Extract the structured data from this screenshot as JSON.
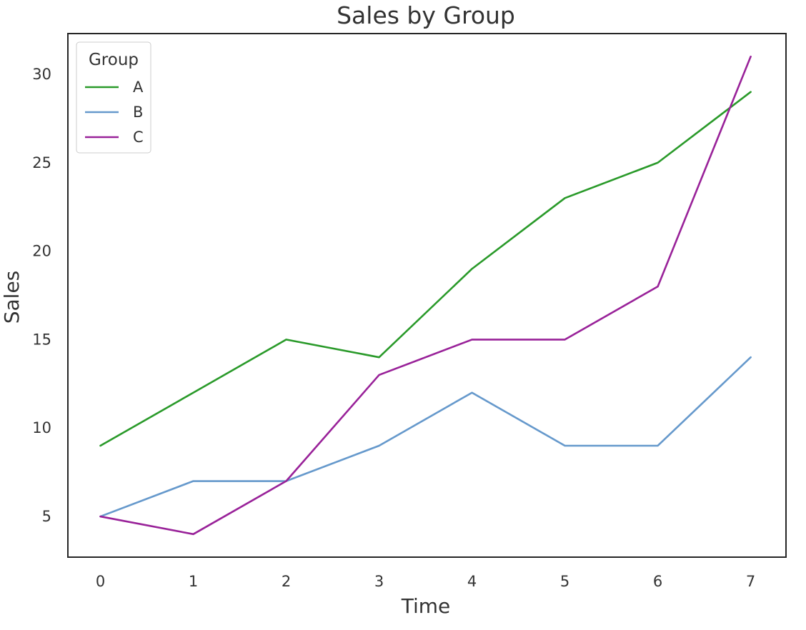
{
  "chart_data": {
    "type": "line",
    "title": "Sales by Group",
    "xlabel": "Time",
    "ylabel": "Sales",
    "x": [
      0,
      1,
      2,
      3,
      4,
      5,
      6,
      7
    ],
    "xticks": [
      0,
      1,
      2,
      3,
      4,
      5,
      6,
      7
    ],
    "yticks": [
      5,
      10,
      15,
      20,
      25,
      30
    ],
    "xlim": [
      -0.35,
      7.38
    ],
    "ylim": [
      2.7,
      32.3
    ],
    "grid": false,
    "legend": {
      "title": "Group",
      "placement": "top-left"
    },
    "series": [
      {
        "name": "A",
        "color": "#2a9a2a",
        "values": [
          9,
          12,
          15,
          14,
          19,
          23,
          25,
          29
        ]
      },
      {
        "name": "B",
        "color": "#6699cc",
        "values": [
          5,
          7,
          7,
          9,
          12,
          9,
          9,
          14
        ]
      },
      {
        "name": "C",
        "color": "#992299",
        "values": [
          5,
          4,
          7,
          13,
          15,
          15,
          18,
          31
        ]
      }
    ]
  }
}
